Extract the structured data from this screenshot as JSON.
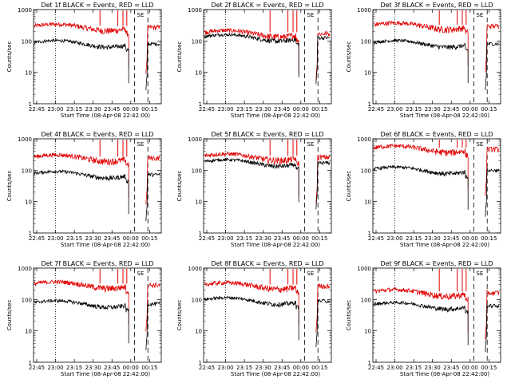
{
  "chart_data": {
    "type": "line",
    "y_scale": "log",
    "ylim": [
      1,
      1000
    ],
    "y_tick_labels": [
      "1",
      "10",
      "100",
      "1000"
    ],
    "x_tick_labels": [
      "22:45",
      "23:00",
      "23:15",
      "23:30",
      "23:45",
      "00:00",
      "00:15"
    ],
    "ylabel": "Counts/sec",
    "xlabel": "Start Time (08-Apr-08 22:42:00)",
    "colors": {
      "events": "#000000",
      "lld": "#e00000"
    },
    "panels": [
      {
        "title": "Det 1f BLACK = Events, RED = LLD",
        "events_level": 90,
        "lld_level": 300
      },
      {
        "title": "Det 2f BLACK = Events, RED = LLD",
        "events_level": 140,
        "lld_level": 190
      },
      {
        "title": "Det 3f BLACK = Events, RED = LLD",
        "events_level": 90,
        "lld_level": 330
      },
      {
        "title": "Det 4f BLACK = Events, RED = LLD",
        "events_level": 80,
        "lld_level": 270
      },
      {
        "title": "Det 5f BLACK = Events, RED = LLD",
        "events_level": 190,
        "lld_level": 290
      },
      {
        "title": "Det 6f BLACK = Events, RED = LLD",
        "events_level": 110,
        "lld_level": 520
      },
      {
        "title": "Det 7f BLACK = Events, RED = LLD",
        "events_level": 80,
        "lld_level": 320
      },
      {
        "title": "Det 8f BLACK = Events, RED = LLD",
        "events_level": 100,
        "lld_level": 300
      },
      {
        "title": "Det 9f BLACK = Events, RED = LLD",
        "events_level": 70,
        "lld_level": 180
      }
    ]
  }
}
